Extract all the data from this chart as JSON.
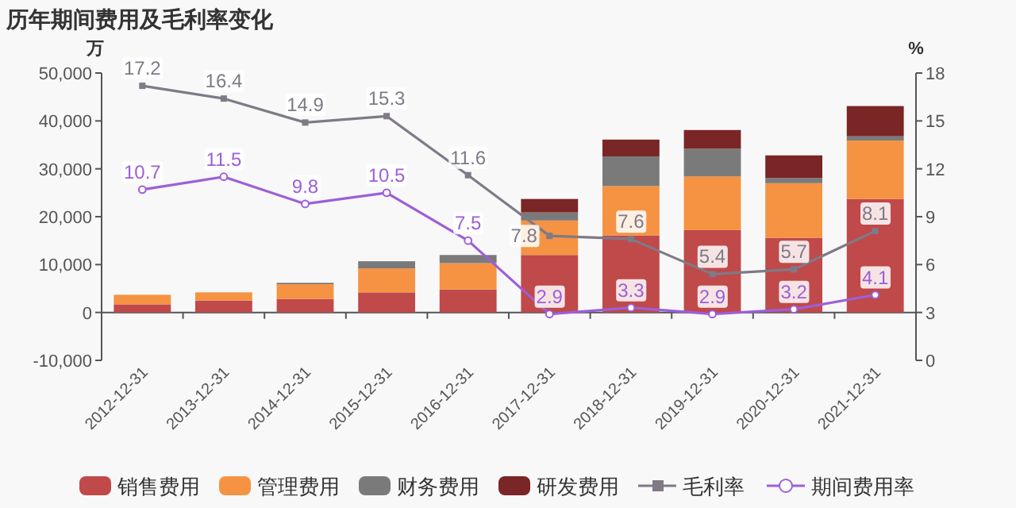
{
  "chart_data": {
    "type": "bar",
    "title": "历年期间费用及毛利率变化",
    "ylabel": "万",
    "y2label": "%",
    "stacked": true,
    "legend": "bottom",
    "categories": [
      "2012-12-31",
      "2013-12-31",
      "2014-12-31",
      "2015-12-31",
      "2016-12-31",
      "2017-12-31",
      "2018-12-31",
      "2019-12-31",
      "2020-12-31",
      "2021-12-31"
    ],
    "ylim": [
      -10000,
      50000
    ],
    "yticks": [
      {
        "value": -10000,
        "label": "-10,000"
      },
      {
        "value": 0,
        "label": "0"
      },
      {
        "value": 10000,
        "label": "10,000"
      },
      {
        "value": 20000,
        "label": "20,000"
      },
      {
        "value": 30000,
        "label": "30,000"
      },
      {
        "value": 40000,
        "label": "40,000"
      },
      {
        "value": 50000,
        "label": "50,000"
      }
    ],
    "y2lim": [
      0,
      18
    ],
    "y2ticks": [
      0,
      3,
      6,
      9,
      12,
      15,
      18
    ],
    "series": [
      {
        "name": "销售费用",
        "type": "bar",
        "color": "#c0494a",
        "values": [
          1700,
          2500,
          2800,
          4200,
          4800,
          12000,
          16100,
          17200,
          15600,
          23700
        ]
      },
      {
        "name": "管理费用",
        "type": "bar",
        "color": "#f59342",
        "values": [
          2000,
          1700,
          3100,
          5000,
          5500,
          7200,
          10300,
          11200,
          11400,
          12200
        ]
      },
      {
        "name": "财务费用",
        "type": "bar",
        "color": "#7a7a7a",
        "values": [
          0,
          0,
          300,
          1500,
          1700,
          1700,
          6200,
          5800,
          1100,
          900
        ]
      },
      {
        "name": "研发费用",
        "type": "bar",
        "color": "#7a2526",
        "values": [
          0,
          0,
          0,
          0,
          0,
          2800,
          3500,
          3900,
          4700,
          6300
        ]
      },
      {
        "name": "毛利率",
        "type": "line",
        "axis": "y2",
        "marker": "square",
        "data_labels": true,
        "color": "#7f7a86",
        "values": [
          17.2,
          16.4,
          14.9,
          15.3,
          11.6,
          7.8,
          7.6,
          5.4,
          5.7,
          8.1
        ]
      },
      {
        "name": "期间费用率",
        "type": "line",
        "axis": "y2",
        "marker": "circle",
        "data_labels": true,
        "color": "#9d5fd8",
        "values": [
          10.7,
          11.5,
          9.8,
          10.5,
          7.5,
          2.9,
          3.3,
          2.9,
          3.2,
          4.1
        ]
      }
    ]
  }
}
